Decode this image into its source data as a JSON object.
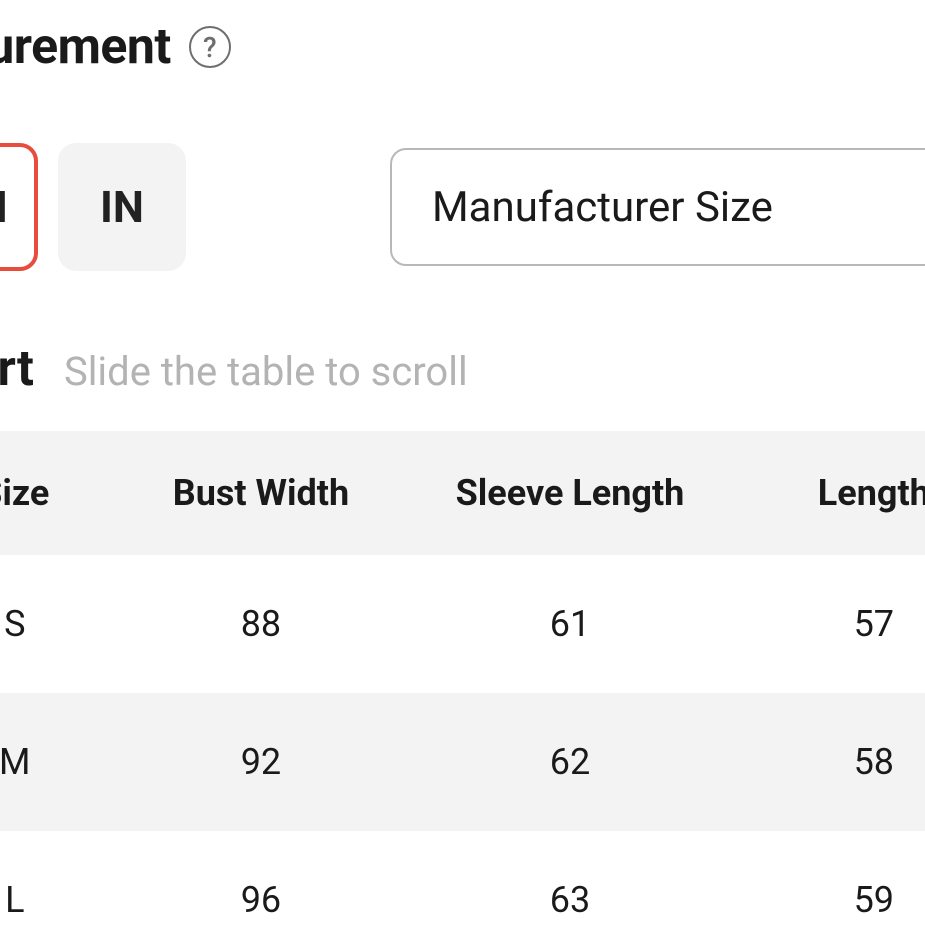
{
  "header": {
    "title": "Measurement",
    "help_icon_glyph": "?"
  },
  "units": {
    "cm_label": "CM",
    "in_label": "IN",
    "active": "cm"
  },
  "size_select": {
    "label": "Manufacturer Size"
  },
  "chart": {
    "title": "Chart",
    "hint": "Slide the table to scroll"
  },
  "table": {
    "columns": [
      "Size",
      "Bust Width",
      "Sleeve Length",
      "Length"
    ],
    "rows": [
      [
        "S",
        "88",
        "61",
        "57"
      ],
      [
        "M",
        "92",
        "62",
        "58"
      ],
      [
        "L",
        "96",
        "63",
        "59"
      ]
    ]
  },
  "colors": {
    "accent": "#e74c3c",
    "muted_bg": "#f3f3f3",
    "border": "#b8b8b8",
    "hint_text": "#b3b3b3",
    "help_icon": "#6e6e6e",
    "text": "#1a1a1a",
    "background": "#ffffff"
  }
}
